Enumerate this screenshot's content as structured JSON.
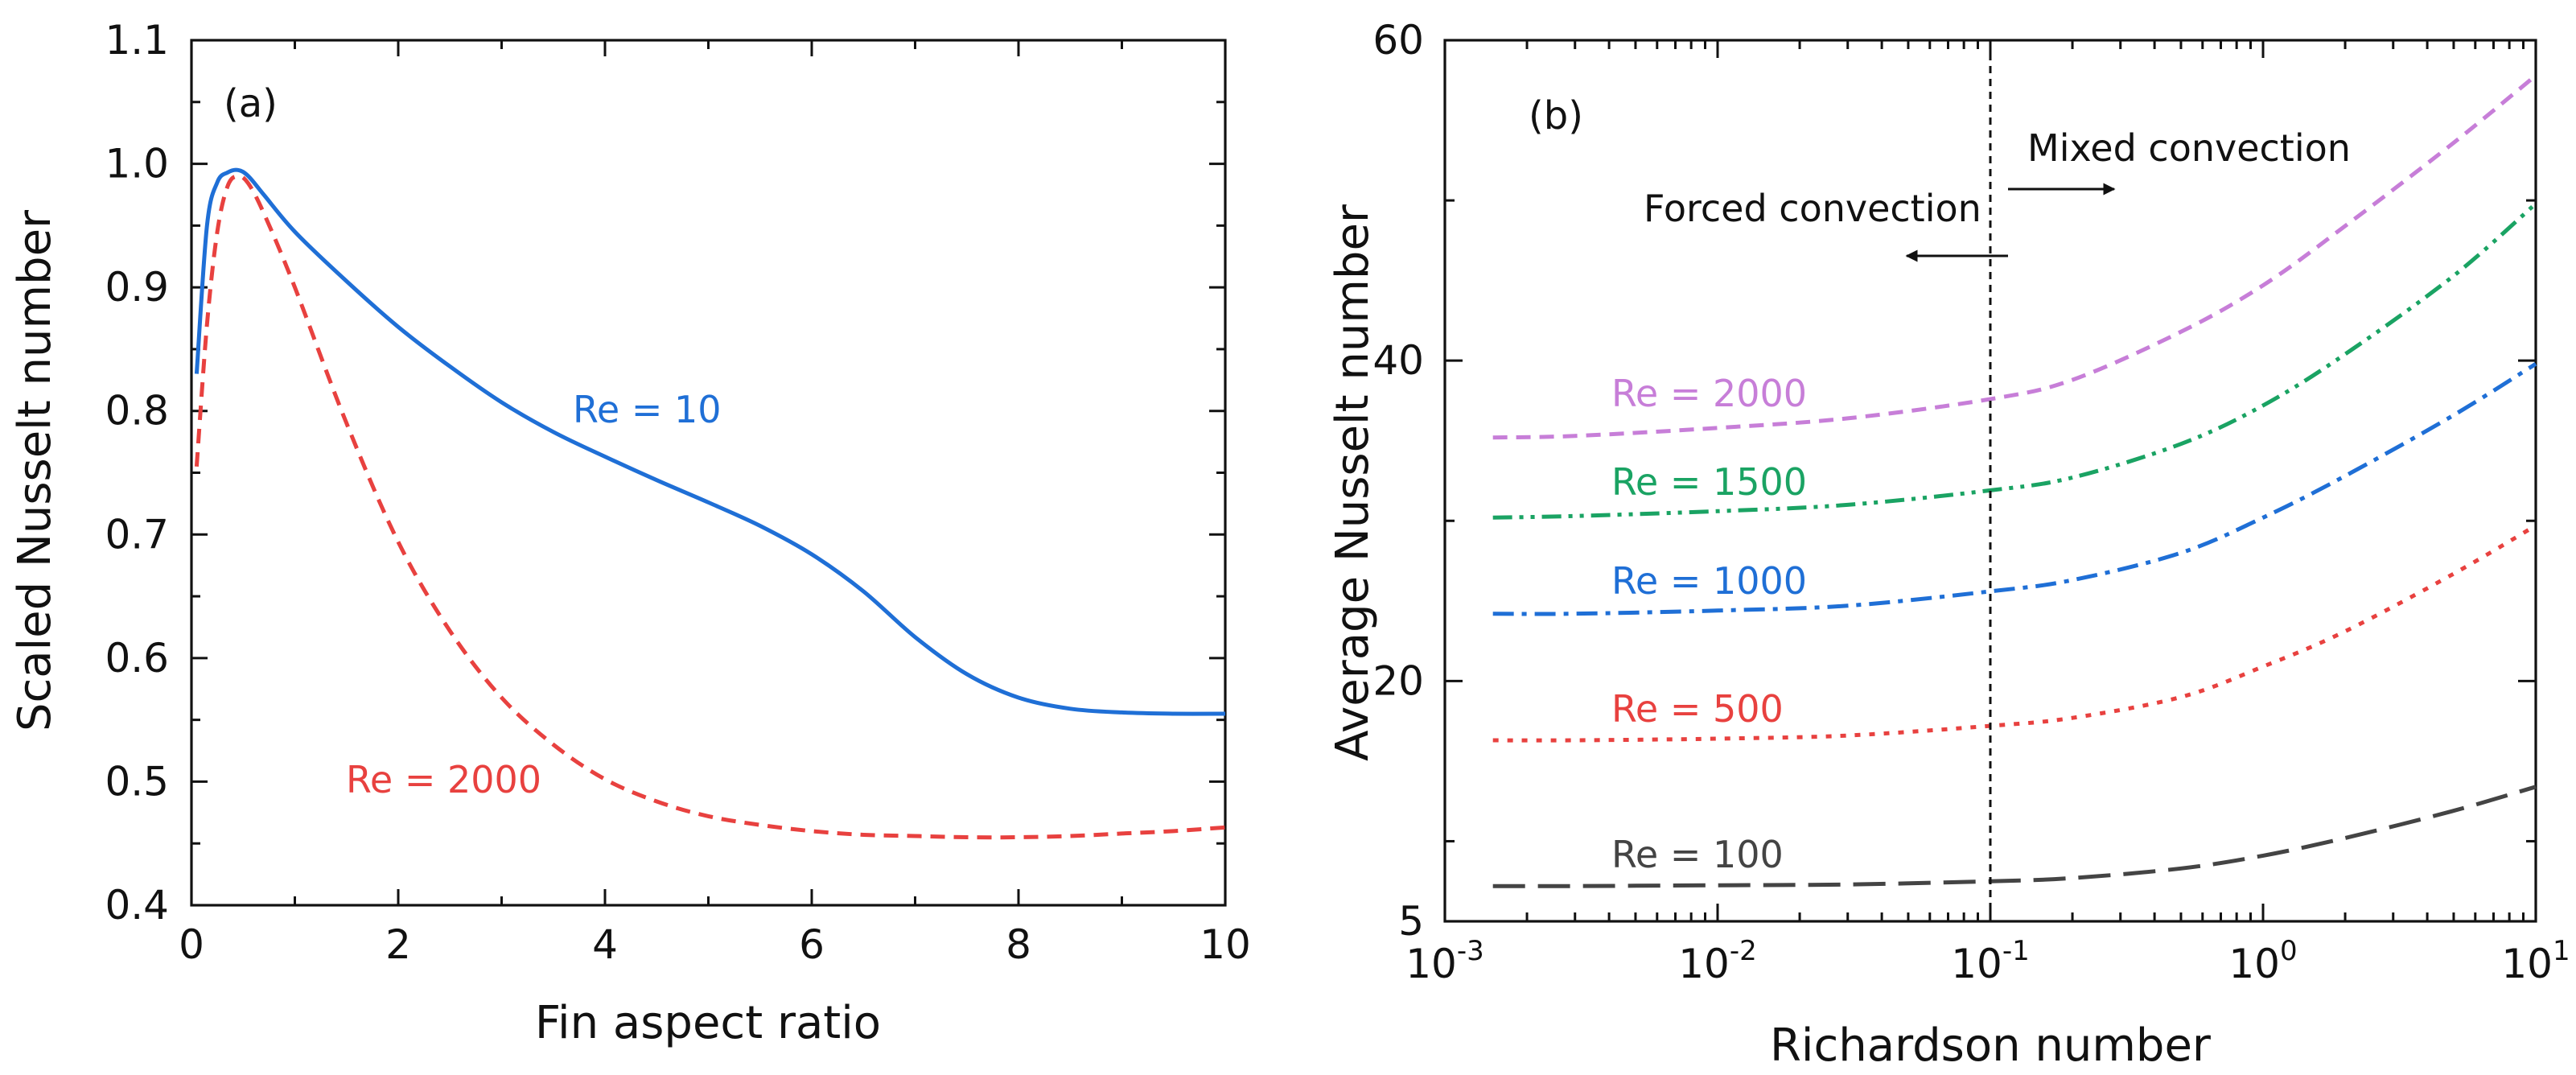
{
  "chart_data": [
    {
      "type": "line",
      "panel_label": "(a)",
      "xlabel": "Fin aspect ratio",
      "ylabel": "Scaled Nusselt number",
      "xlim": [
        0,
        10
      ],
      "ylim": [
        0.4,
        1.1
      ],
      "xticks": [
        0,
        2,
        4,
        6,
        8,
        10
      ],
      "xtick_labels": [
        "0",
        "2",
        "4",
        "6",
        "8",
        "10"
      ],
      "yticks": [
        0.4,
        0.5,
        0.6,
        0.7,
        0.8,
        0.9,
        1.0,
        1.1
      ],
      "ytick_labels": [
        "0.4",
        "0.5",
        "0.6",
        "0.7",
        "0.8",
        "0.9",
        "1.0",
        "1.1"
      ],
      "series": [
        {
          "name": "Re = 10",
          "color": "#1f6fd6",
          "style": "solid",
          "x": [
            0.05,
            0.15,
            0.25,
            0.35,
            0.45,
            0.55,
            0.7,
            1.0,
            1.5,
            2.0,
            2.5,
            3.0,
            3.5,
            4.0,
            4.5,
            5.0,
            5.5,
            6.0,
            6.5,
            7.0,
            7.5,
            8.0,
            8.5,
            9.0,
            9.5,
            10.0
          ],
          "y": [
            0.83,
            0.95,
            0.985,
            0.993,
            0.995,
            0.99,
            0.975,
            0.945,
            0.905,
            0.868,
            0.836,
            0.807,
            0.783,
            0.763,
            0.744,
            0.726,
            0.707,
            0.684,
            0.654,
            0.617,
            0.587,
            0.568,
            0.559,
            0.556,
            0.555,
            0.555
          ]
        },
        {
          "name": "Re = 2000",
          "color": "#e8413f",
          "style": "dashed",
          "x": [
            0.05,
            0.15,
            0.25,
            0.35,
            0.45,
            0.55,
            0.7,
            1.0,
            1.5,
            2.0,
            2.5,
            3.0,
            3.5,
            4.0,
            4.5,
            5.0,
            5.5,
            6.0,
            6.5,
            7.0,
            7.5,
            8.0,
            8.5,
            9.0,
            9.5,
            10.0
          ],
          "y": [
            0.755,
            0.87,
            0.945,
            0.982,
            0.99,
            0.984,
            0.96,
            0.9,
            0.79,
            0.694,
            0.622,
            0.568,
            0.53,
            0.502,
            0.484,
            0.472,
            0.465,
            0.46,
            0.457,
            0.456,
            0.455,
            0.455,
            0.456,
            0.458,
            0.46,
            0.463
          ]
        }
      ],
      "curve_labels": [
        "Re = 10",
        "Re = 2000"
      ]
    },
    {
      "type": "line",
      "panel_label": "(b)",
      "xlabel": "Richardson number",
      "ylabel": "Average Nusselt number",
      "xscale": "log",
      "xlim": [
        0.001,
        10
      ],
      "ylim": [
        5,
        60
      ],
      "xticks": [
        0.001,
        0.01,
        0.1,
        1,
        10
      ],
      "xtick_bases": [
        "10",
        "10",
        "10",
        "10",
        "10"
      ],
      "xtick_exponents": [
        "-3",
        "-2",
        "-1",
        "0",
        "1"
      ],
      "yticks": [
        5,
        20,
        40,
        60
      ],
      "ytick_labels": [
        "5",
        "20",
        "40",
        "60"
      ],
      "regime_boundary_x": 0.1,
      "annotations": [
        "Forced convection",
        "Mixed convection"
      ],
      "series": [
        {
          "name": "Re = 2000",
          "color": "#c77ed8",
          "style": "dashed",
          "x": [
            0.0015,
            0.003,
            0.01,
            0.03,
            0.1,
            0.2,
            0.5,
            1,
            2,
            5,
            10
          ],
          "y": [
            35.2,
            35.3,
            35.8,
            36.4,
            37.6,
            38.8,
            41.8,
            44.7,
            48.4,
            53.6,
            57.8
          ]
        },
        {
          "name": "Re = 1500",
          "color": "#1aa363",
          "style": "dashdotdot",
          "x": [
            0.0015,
            0.003,
            0.01,
            0.03,
            0.1,
            0.2,
            0.5,
            1,
            2,
            5,
            10
          ],
          "y": [
            30.2,
            30.3,
            30.6,
            31.0,
            31.9,
            32.7,
            34.8,
            37.2,
            40.4,
            45.3,
            49.8
          ]
        },
        {
          "name": "Re = 1000",
          "color": "#1f6fd6",
          "style": "dashdot",
          "x": [
            0.0015,
            0.003,
            0.01,
            0.03,
            0.1,
            0.2,
            0.5,
            1,
            2,
            5,
            10
          ],
          "y": [
            24.2,
            24.2,
            24.4,
            24.7,
            25.6,
            26.3,
            28.0,
            30.2,
            32.8,
            36.6,
            39.8
          ]
        },
        {
          "name": "Re = 500",
          "color": "#e8413f",
          "style": "dotted",
          "x": [
            0.0015,
            0.003,
            0.01,
            0.03,
            0.1,
            0.2,
            0.5,
            1,
            2,
            5,
            10
          ],
          "y": [
            16.3,
            16.3,
            16.4,
            16.6,
            17.2,
            17.7,
            19.0,
            20.9,
            23.1,
            26.7,
            29.7
          ]
        },
        {
          "name": "Re = 100",
          "color": "#444444",
          "style": "longdash",
          "x": [
            0.0015,
            0.003,
            0.01,
            0.03,
            0.1,
            0.2,
            0.5,
            1,
            2,
            5,
            10
          ],
          "y": [
            7.2,
            7.2,
            7.25,
            7.3,
            7.5,
            7.7,
            8.3,
            9.1,
            10.2,
            11.9,
            13.4
          ]
        }
      ],
      "curve_labels": [
        "Re = 2000",
        "Re = 1500",
        "Re = 1000",
        "Re = 500",
        "Re = 100"
      ]
    }
  ]
}
